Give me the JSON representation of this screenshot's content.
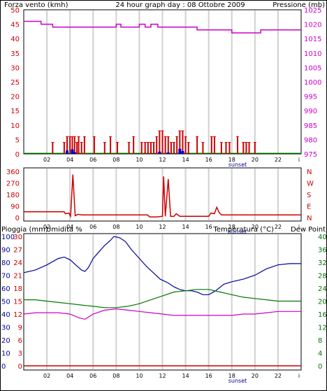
{
  "title": "24 hour graph day : 08 Ottobre 2009",
  "colors": {
    "grid": "#cccccc",
    "wind": "#cc0000",
    "wind_dir": "#cc0000",
    "gust_marks": "#0000cc",
    "pressure": "#cc00cc",
    "rain": "#cc0000",
    "humidity": "#000099",
    "temperature": "#007700",
    "dewpoint": "#cc00cc",
    "frame": "#000000",
    "sunset": "#000099"
  },
  "x_ticks": [
    "02",
    "04",
    "06",
    "08",
    "10",
    "12",
    "14",
    "16",
    "18",
    "20",
    "22",
    "i"
  ],
  "sunset_label": "sunset",
  "chart_data": [
    {
      "type": "bar",
      "name": "wind_pressure",
      "left_label": "Forza vento (kmh)",
      "right_label": "Pressione (mb)",
      "left_ticks": [
        "0",
        "5",
        "10",
        "15",
        "20",
        "25",
        "30",
        "35",
        "40",
        "45",
        "50"
      ],
      "right_ticks": [
        "975",
        "980",
        "985",
        "990",
        "995",
        "1000",
        "1005",
        "1010",
        "1015",
        "1020",
        "1025"
      ],
      "ylim_left": [
        0,
        50
      ],
      "ylim_right": [
        975,
        1025
      ],
      "sunset_hour": 18.5,
      "wind": [
        [
          0.5,
          0
        ],
        [
          2.5,
          4
        ],
        [
          3.5,
          4
        ],
        [
          3.75,
          6
        ],
        [
          4.0,
          6
        ],
        [
          4.2,
          6
        ],
        [
          4.4,
          6
        ],
        [
          4.6,
          4
        ],
        [
          4.75,
          6
        ],
        [
          5.0,
          4
        ],
        [
          5.25,
          6
        ],
        [
          6.1,
          6
        ],
        [
          7.0,
          4
        ],
        [
          7.5,
          6
        ],
        [
          8.1,
          4
        ],
        [
          9.1,
          4
        ],
        [
          9.5,
          6
        ],
        [
          10.2,
          4
        ],
        [
          10.5,
          4
        ],
        [
          10.75,
          4
        ],
        [
          11.0,
          4
        ],
        [
          11.25,
          4
        ],
        [
          11.5,
          6
        ],
        [
          11.75,
          8
        ],
        [
          12.0,
          8
        ],
        [
          12.25,
          6
        ],
        [
          12.5,
          6
        ],
        [
          12.75,
          4
        ],
        [
          13.0,
          4
        ],
        [
          13.25,
          6
        ],
        [
          13.5,
          8
        ],
        [
          13.75,
          8
        ],
        [
          14.0,
          6
        ],
        [
          14.25,
          4
        ],
        [
          15.0,
          6
        ],
        [
          15.5,
          4
        ],
        [
          16.25,
          6
        ],
        [
          16.5,
          6
        ],
        [
          17.1,
          4
        ],
        [
          17.5,
          4
        ],
        [
          17.8,
          4
        ],
        [
          18.5,
          6
        ],
        [
          19.0,
          4
        ],
        [
          19.25,
          4
        ],
        [
          19.5,
          4
        ],
        [
          20.0,
          4
        ]
      ],
      "gust": [
        [
          3.75,
          1.2
        ],
        [
          4.2,
          1.6
        ],
        [
          4.4,
          0.6
        ],
        [
          11.75,
          0.8
        ],
        [
          12.5,
          0.5
        ],
        [
          13.5,
          1.8
        ],
        [
          13.75,
          1.0
        ]
      ],
      "pressure": [
        [
          0,
          1021
        ],
        [
          1.5,
          1021
        ],
        [
          1.5,
          1020
        ],
        [
          2.5,
          1020
        ],
        [
          2.5,
          1019
        ],
        [
          8,
          1019
        ],
        [
          8,
          1020
        ],
        [
          8.4,
          1020
        ],
        [
          8.4,
          1019
        ],
        [
          10,
          1019
        ],
        [
          10,
          1020
        ],
        [
          10.5,
          1020
        ],
        [
          10.5,
          1019
        ],
        [
          11,
          1019
        ],
        [
          11,
          1020
        ],
        [
          11.6,
          1020
        ],
        [
          11.6,
          1019
        ],
        [
          15,
          1019
        ],
        [
          15,
          1018
        ],
        [
          18,
          1018
        ],
        [
          18,
          1017
        ],
        [
          20.5,
          1017
        ],
        [
          20.5,
          1018
        ],
        [
          24,
          1018
        ]
      ]
    },
    {
      "type": "line",
      "name": "wind_direction",
      "left_ticks": [
        "0",
        "90",
        "180",
        "270",
        "360"
      ],
      "right_ticks": [
        "N",
        "E",
        "S",
        "W",
        "N"
      ],
      "ylim": [
        0,
        360
      ],
      "direction": [
        [
          0,
          45
        ],
        [
          2,
          45
        ],
        [
          3.5,
          45
        ],
        [
          3.6,
          30
        ],
        [
          3.9,
          35
        ],
        [
          4.05,
          10
        ],
        [
          4.25,
          335
        ],
        [
          4.45,
          15
        ],
        [
          4.7,
          25
        ],
        [
          5,
          20
        ],
        [
          6,
          20
        ],
        [
          7,
          20
        ],
        [
          8,
          20
        ],
        [
          9,
          20
        ],
        [
          10,
          20
        ],
        [
          10.7,
          20
        ],
        [
          10.9,
          5
        ],
        [
          11.5,
          5
        ],
        [
          12,
          10
        ],
        [
          12.1,
          320
        ],
        [
          12.25,
          10
        ],
        [
          12.5,
          300
        ],
        [
          12.7,
          10
        ],
        [
          13,
          10
        ],
        [
          13.2,
          30
        ],
        [
          13.5,
          10
        ],
        [
          14,
          10
        ],
        [
          15,
          10
        ],
        [
          16,
          10
        ],
        [
          16.2,
          35
        ],
        [
          16.5,
          30
        ],
        [
          16.7,
          80
        ],
        [
          16.9,
          40
        ],
        [
          17.1,
          20
        ],
        [
          18,
          20
        ],
        [
          19,
          20
        ],
        [
          20,
          20
        ],
        [
          21,
          20
        ],
        [
          22,
          20
        ],
        [
          24,
          20
        ]
      ]
    },
    {
      "type": "line",
      "name": "rain_humidity_temperature",
      "left_label": "Pioggia (mm)",
      "left_label2": "Umidita %",
      "right_label": "Temperatura (°C)",
      "right_label2": "Dew Point",
      "rain_ticks": [
        "0",
        "3",
        "6",
        "9",
        "12",
        "15",
        "18",
        "21",
        "24",
        "27",
        "30"
      ],
      "hum_ticks": [
        "0",
        "10",
        "20",
        "30",
        "40",
        "50",
        "60",
        "70",
        "80",
        "90",
        "100"
      ],
      "temp_ticks": [
        "0",
        "4",
        "8",
        "12",
        "16",
        "20",
        "24",
        "28",
        "32",
        "36",
        "40"
      ],
      "ylim_rain": [
        0,
        30
      ],
      "ylim_humidity": [
        0,
        100
      ],
      "ylim_temperature": [
        0,
        40
      ],
      "rain": [
        [
          0,
          0
        ],
        [
          24,
          0
        ]
      ],
      "humidity": [
        [
          0,
          72
        ],
        [
          1,
          74
        ],
        [
          2,
          78
        ],
        [
          3,
          83
        ],
        [
          3.5,
          84
        ],
        [
          4,
          82
        ],
        [
          4.5,
          78
        ],
        [
          5,
          74
        ],
        [
          5.3,
          73
        ],
        [
          5.6,
          76
        ],
        [
          6,
          83
        ],
        [
          6.5,
          88
        ],
        [
          7,
          93
        ],
        [
          7.5,
          97
        ],
        [
          7.8,
          100
        ],
        [
          8.3,
          99
        ],
        [
          8.8,
          96
        ],
        [
          9.3,
          90
        ],
        [
          10,
          83
        ],
        [
          10.6,
          77
        ],
        [
          11.2,
          72
        ],
        [
          11.8,
          67
        ],
        [
          12.5,
          64
        ],
        [
          13,
          61
        ],
        [
          13.5,
          59
        ],
        [
          14,
          58
        ],
        [
          14.5,
          58
        ],
        [
          15,
          57
        ],
        [
          15.5,
          55
        ],
        [
          16,
          55
        ],
        [
          16.6,
          58
        ],
        [
          17.3,
          63
        ],
        [
          18,
          65
        ],
        [
          19,
          67
        ],
        [
          20,
          70
        ],
        [
          21,
          75
        ],
        [
          22,
          78
        ],
        [
          23,
          79
        ],
        [
          24,
          79
        ]
      ],
      "temperature": [
        [
          0,
          20.4
        ],
        [
          1,
          20.4
        ],
        [
          2,
          20
        ],
        [
          3,
          19.6
        ],
        [
          4,
          19.2
        ],
        [
          5,
          18.8
        ],
        [
          6,
          18.4
        ],
        [
          7,
          18.0
        ],
        [
          8,
          18.0
        ],
        [
          9,
          18.4
        ],
        [
          10,
          19.2
        ],
        [
          11,
          20.4
        ],
        [
          12,
          21.6
        ],
        [
          13,
          22.8
        ],
        [
          14,
          23.2
        ],
        [
          15,
          23.6
        ],
        [
          16,
          23.6
        ],
        [
          17,
          22.8
        ],
        [
          18,
          22.0
        ],
        [
          19,
          21.2
        ],
        [
          20,
          20.8
        ],
        [
          21,
          20.4
        ],
        [
          22,
          20.0
        ],
        [
          23,
          20.0
        ],
        [
          24,
          20.0
        ]
      ],
      "dewpoint": [
        [
          0,
          16
        ],
        [
          1,
          16.4
        ],
        [
          2,
          16.4
        ],
        [
          3,
          16.4
        ],
        [
          4,
          16.0
        ],
        [
          4.8,
          14.8
        ],
        [
          5.3,
          14.4
        ],
        [
          6,
          16
        ],
        [
          7,
          17.2
        ],
        [
          8,
          17.6
        ],
        [
          9,
          17.2
        ],
        [
          10,
          16.8
        ],
        [
          11,
          16.4
        ],
        [
          12,
          16.0
        ],
        [
          13,
          15.6
        ],
        [
          14,
          15.6
        ],
        [
          15,
          15.6
        ],
        [
          16,
          15.6
        ],
        [
          17,
          15.6
        ],
        [
          18,
          15.6
        ],
        [
          19,
          16.0
        ],
        [
          20,
          16.0
        ],
        [
          21,
          16.4
        ],
        [
          22,
          16.8
        ],
        [
          23,
          16.8
        ],
        [
          24,
          16.8
        ]
      ]
    }
  ]
}
